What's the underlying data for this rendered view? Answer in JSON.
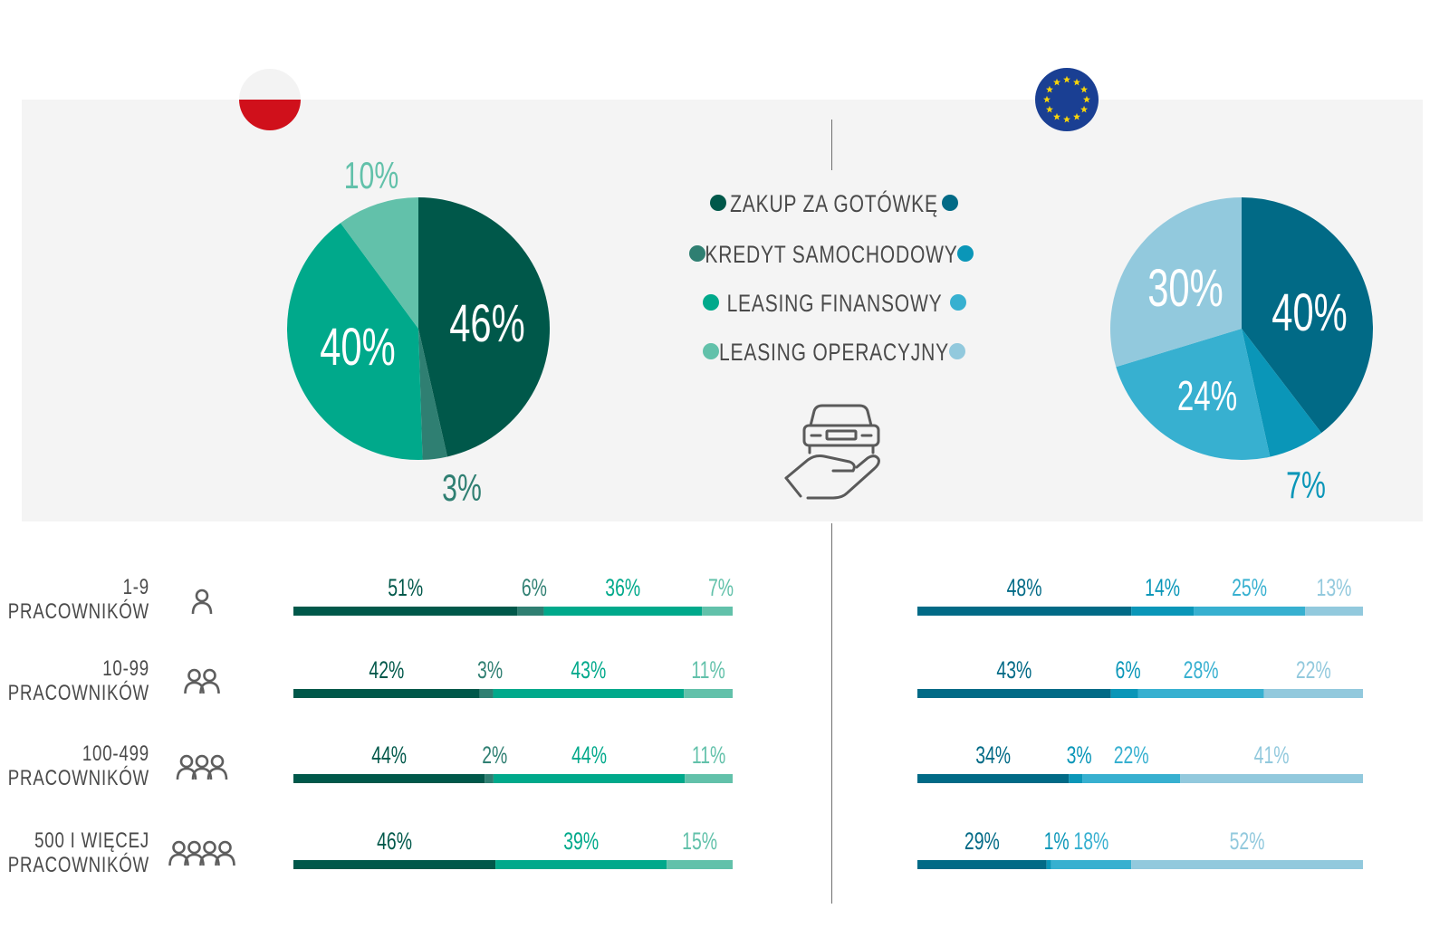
{
  "legend": {
    "items": [
      {
        "label": "ZAKUP ZA GOTÓWKĘ",
        "pl_color": "#00584a",
        "eu_color": "#016a86"
      },
      {
        "label": "KREDYT SAMOCHODOWY",
        "pl_color": "#2f7f72",
        "eu_color": "#0a96b8"
      },
      {
        "label": "LEASING FINANSOWY",
        "pl_color": "#00a98b",
        "eu_color": "#37b0d0"
      },
      {
        "label": "LEASING OPERACYJNY",
        "pl_color": "#62c1aa",
        "eu_color": "#92c9dd"
      }
    ]
  },
  "icons": {
    "poland_flag": "poland-flag-icon",
    "eu_flag": "eu-flag-icon",
    "car_hand": "car-in-hand-icon",
    "person": "person-icon",
    "people_2": "two-people-icon",
    "people_3": "three-people-icon",
    "people_4": "four-people-icon"
  },
  "chart_data": [
    {
      "type": "pie",
      "region": "PL",
      "labels": [
        "ZAKUP ZA GOTÓWKĘ",
        "KREDYT SAMOCHODOWY",
        "LEASING FINANSOWY",
        "LEASING OPERACYJNY"
      ],
      "values": [
        46,
        3,
        40,
        10
      ],
      "value_labels": [
        "46%",
        "3%",
        "40%",
        "10%"
      ],
      "colors": [
        "#00584a",
        "#2f7f72",
        "#00a98b",
        "#62c1aa"
      ]
    },
    {
      "type": "pie",
      "region": "EU",
      "labels": [
        "ZAKUP ZA GOTÓWKĘ",
        "KREDYT SAMOCHODOWY",
        "LEASING FINANSOWY",
        "LEASING OPERACYJNY"
      ],
      "values": [
        40,
        7,
        24,
        30
      ],
      "value_labels": [
        "40%",
        "7%",
        "24%",
        "30%"
      ],
      "colors": [
        "#016a86",
        "#0a96b8",
        "#37b0d0",
        "#92c9dd"
      ]
    },
    {
      "type": "bar",
      "stacked": true,
      "orientation": "horizontal",
      "region": "PL",
      "categories": [
        "1-9 PRACOWNIKÓW",
        "10-99 PRACOWNIKÓW",
        "100-499 PRACOWNIKÓW",
        "500 I WIĘCEJ PRACOWNIKÓW"
      ],
      "category_lines": [
        [
          "1-9",
          "PRACOWNIKÓW"
        ],
        [
          "10-99",
          "PRACOWNIKÓW"
        ],
        [
          "100-499",
          "PRACOWNIKÓW"
        ],
        [
          "500 I WIĘCEJ",
          "PRACOWNIKÓW"
        ]
      ],
      "series": [
        {
          "name": "ZAKUP ZA GOTÓWKĘ",
          "values": [
            51,
            42,
            44,
            46
          ],
          "labels": [
            "51%",
            "42%",
            "44%",
            "46%"
          ],
          "color": "#00584a",
          "text_color": "#00584a"
        },
        {
          "name": "KREDYT SAMOCHODOWY",
          "values": [
            6,
            3,
            2,
            0
          ],
          "labels": [
            "6%",
            "3%",
            "2%",
            ""
          ],
          "color": "#2f7f72",
          "text_color": "#2f7f72"
        },
        {
          "name": "LEASING FINANSOWY",
          "values": [
            36,
            43,
            44,
            39
          ],
          "labels": [
            "36%",
            "43%",
            "44%",
            "39%"
          ],
          "color": "#00a98b",
          "text_color": "#00a98b"
        },
        {
          "name": "LEASING OPERACYJNY",
          "values": [
            7,
            11,
            11,
            15
          ],
          "labels": [
            "7%",
            "11%",
            "11%",
            "15%"
          ],
          "color": "#62c1aa",
          "text_color": "#62c1aa"
        }
      ]
    },
    {
      "type": "bar",
      "stacked": true,
      "orientation": "horizontal",
      "region": "EU",
      "categories": [
        "1-9 PRACOWNIKÓW",
        "10-99 PRACOWNIKÓW",
        "100-499 PRACOWNIKÓW",
        "500 I WIĘCEJ PRACOWNIKÓW"
      ],
      "series": [
        {
          "name": "ZAKUP ZA GOTÓWKĘ",
          "values": [
            48,
            43,
            34,
            29
          ],
          "labels": [
            "48%",
            "43%",
            "34%",
            "29%"
          ],
          "color": "#016a86",
          "text_color": "#016a86"
        },
        {
          "name": "KREDYT SAMOCHODOWY",
          "values": [
            14,
            6,
            3,
            1
          ],
          "labels": [
            "14%",
            "6%",
            "3%",
            "1%"
          ],
          "color": "#0a96b8",
          "text_color": "#0a96b8"
        },
        {
          "name": "LEASING FINANSOWY",
          "values": [
            25,
            28,
            22,
            18
          ],
          "labels": [
            "25%",
            "28%",
            "22%",
            "18%"
          ],
          "color": "#37b0d0",
          "text_color": "#37b0d0"
        },
        {
          "name": "LEASING OPERACYJNY",
          "values": [
            13,
            22,
            41,
            52
          ],
          "labels": [
            "13%",
            "22%",
            "41%",
            "52%"
          ],
          "color": "#92c9dd",
          "text_color": "#92c9dd"
        }
      ]
    }
  ]
}
